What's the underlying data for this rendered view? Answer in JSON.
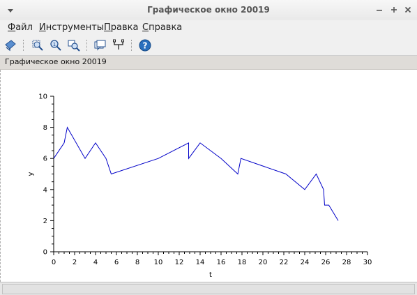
{
  "window": {
    "title": "Графическое окно 20019",
    "controls": [
      "minimize-icon",
      "maximize-icon",
      "close-icon"
    ]
  },
  "menubar": {
    "items": [
      {
        "label": "Файл"
      },
      {
        "label": "Инструменты"
      },
      {
        "label": "Правка"
      },
      {
        "label": "Справка"
      }
    ]
  },
  "toolbar": {
    "buttons": [
      "rotate-icon",
      "zoom-area-icon",
      "zoom-icon",
      "unzoom-icon",
      "datatip-icon",
      "edit-axes-icon",
      "help-icon"
    ]
  },
  "figure": {
    "title": "Графическое окно 20019"
  },
  "colors": {
    "line": "#0000c8",
    "axis": "#000000",
    "toolbar_icon": "#2a6fbd"
  },
  "chart_data": {
    "type": "line",
    "xlabel": "t",
    "ylabel": "y",
    "xlim": [
      0,
      30
    ],
    "ylim": [
      0,
      10
    ],
    "xticks": [
      0,
      2,
      4,
      6,
      8,
      10,
      12,
      14,
      16,
      18,
      20,
      22,
      24,
      26,
      28,
      30
    ],
    "yticks": [
      0,
      2,
      4,
      6,
      8,
      10
    ],
    "grid": false,
    "legend": "none",
    "series": [
      {
        "x": [
          0,
          1,
          1.3,
          3,
          4,
          5,
          5.5,
          10,
          12.9,
          12.9,
          14,
          16,
          17.6,
          17.9,
          22.2,
          24,
          25.1,
          25.8,
          25.9,
          26.3,
          27.2
        ],
        "y": [
          6,
          7,
          8,
          6,
          7,
          6,
          5,
          6,
          7,
          6,
          7,
          6,
          5,
          6,
          5,
          4,
          5,
          4,
          3,
          3,
          2
        ]
      }
    ]
  }
}
